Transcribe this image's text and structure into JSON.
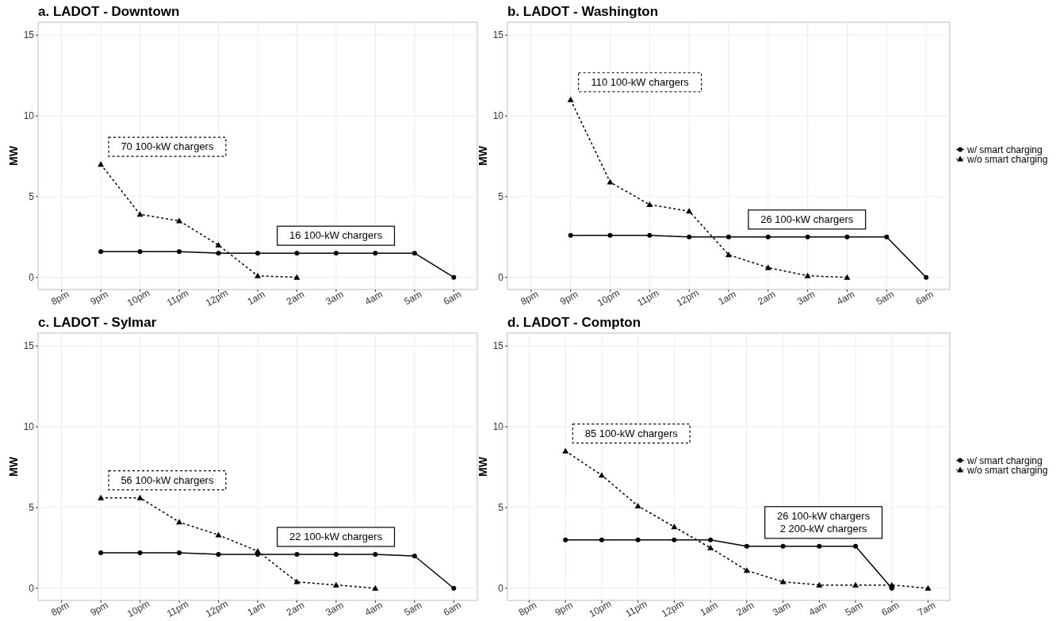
{
  "chart_data": [
    {
      "type": "line",
      "title": "a. LADOT - Downtown",
      "ylabel": "MW",
      "categories": [
        "8pm",
        "9pm",
        "10pm",
        "11pm",
        "12pm",
        "1am",
        "2am",
        "3am",
        "4am",
        "5am",
        "6am"
      ],
      "ylim": [
        -0.75,
        15.8
      ],
      "yticks": [
        0,
        5,
        10,
        15
      ],
      "grid": true,
      "legend": false,
      "series": [
        {
          "color": "#000000",
          "marker": "circle",
          "line_style": "solid",
          "values": [
            null,
            1.6,
            1.6,
            1.6,
            1.5,
            1.5,
            1.5,
            1.5,
            1.5,
            1.5,
            0
          ]
        },
        {
          "color": "#000000",
          "marker": "triangle",
          "line_style": "dashed",
          "values": [
            null,
            7,
            3.9,
            3.5,
            2,
            0.1,
            0,
            null,
            null,
            null,
            null
          ]
        }
      ],
      "annotations": [
        "70 100-kW chargers",
        "16 100-kW chargers"
      ]
    },
    {
      "type": "line",
      "title": "b. LADOT - Washington",
      "ylabel": "MW",
      "categories": [
        "8pm",
        "9pm",
        "10pm",
        "11pm",
        "12pm",
        "1am",
        "2am",
        "3am",
        "4am",
        "5am",
        "6am"
      ],
      "ylim": [
        -0.75,
        15.8
      ],
      "yticks": [
        0,
        5,
        10,
        15
      ],
      "grid": true,
      "legend": "right",
      "series": [
        {
          "name": "w/ smart charging",
          "color": "#000000",
          "marker": "circle",
          "line_style": "solid",
          "values": [
            null,
            2.6,
            2.6,
            2.6,
            2.5,
            2.5,
            2.5,
            2.5,
            2.5,
            2.5,
            0
          ]
        },
        {
          "name": "w/o smart charging",
          "color": "#000000",
          "marker": "triangle",
          "line_style": "dashed",
          "values": [
            null,
            11,
            5.9,
            4.5,
            4.1,
            1.4,
            0.6,
            0.1,
            0,
            null,
            null
          ]
        }
      ],
      "annotations": [
        "110 100-kW chargers",
        "26 100-kW chargers"
      ]
    },
    {
      "type": "line",
      "title": "c. LADOT - Sylmar",
      "ylabel": "MW",
      "categories": [
        "8pm",
        "9pm",
        "10pm",
        "11pm",
        "12pm",
        "1am",
        "2am",
        "3am",
        "4am",
        "5am",
        "6am"
      ],
      "ylim": [
        -0.75,
        15.8
      ],
      "yticks": [
        0,
        5,
        10,
        15
      ],
      "grid": true,
      "legend": false,
      "series": [
        {
          "color": "#000000",
          "marker": "circle",
          "line_style": "solid",
          "values": [
            null,
            2.2,
            2.2,
            2.2,
            2.1,
            2.1,
            2.1,
            2.1,
            2.1,
            2,
            0
          ]
        },
        {
          "color": "#000000",
          "marker": "triangle",
          "line_style": "dashed",
          "values": [
            null,
            5.6,
            5.6,
            4.1,
            3.3,
            2.3,
            0.4,
            0.2,
            0,
            null,
            null
          ]
        }
      ],
      "annotations": [
        "56 100-kW chargers",
        "22 100-kW chargers"
      ]
    },
    {
      "type": "line",
      "title": "d. LADOT - Compton",
      "ylabel": "MW",
      "categories": [
        "8pm",
        "9pm",
        "10pm",
        "11pm",
        "12pm",
        "1am",
        "2am",
        "3am",
        "4am",
        "5am",
        "6am",
        "7am"
      ],
      "ylim": [
        -0.75,
        15.8
      ],
      "yticks": [
        0,
        5,
        10,
        15
      ],
      "grid": true,
      "legend": "right",
      "series": [
        {
          "name": "w/ smart charging",
          "color": "#000000",
          "marker": "circle",
          "line_style": "solid",
          "values": [
            null,
            3,
            3,
            3,
            3,
            3,
            2.6,
            2.6,
            2.6,
            2.6,
            0,
            null
          ]
        },
        {
          "name": "w/o smart charging",
          "color": "#000000",
          "marker": "triangle",
          "line_style": "dashed",
          "values": [
            null,
            8.5,
            7,
            5.1,
            3.8,
            2.5,
            1.1,
            0.4,
            0.2,
            0.2,
            0.2,
            0
          ]
        }
      ],
      "annotations": [
        "85 100-kW chargers",
        "26 100-kW chargers\n2 200-kW chargers"
      ]
    }
  ]
}
